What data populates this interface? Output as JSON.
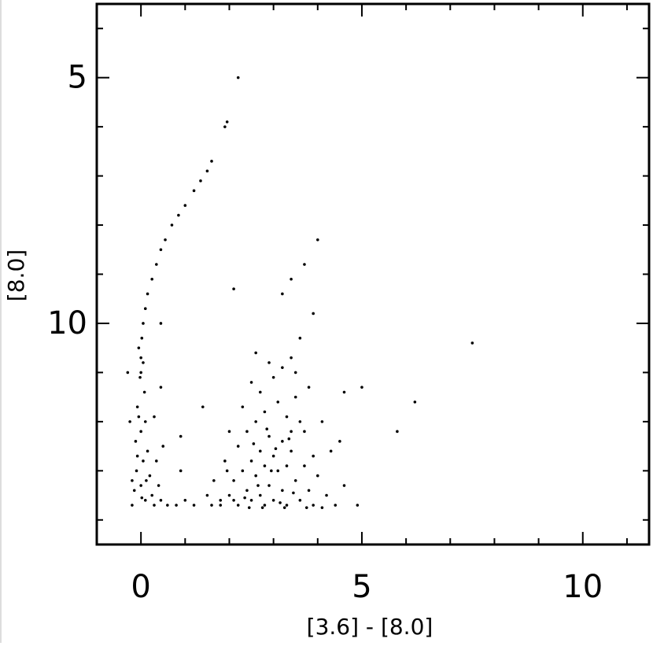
{
  "chart_data": {
    "type": "scatter",
    "x_label": "[3.6] -  [8.0]",
    "y_label": "[8.0]",
    "xlim": [
      -1,
      11.5
    ],
    "ylim": [
      14.5,
      3.5
    ],
    "xticks": [
      0,
      5,
      10
    ],
    "yticks": [
      5,
      10
    ],
    "xminor": [
      -1,
      1,
      2,
      3,
      4,
      6,
      7,
      8,
      9,
      11
    ],
    "yminor": [
      4,
      6,
      7,
      8,
      9,
      11,
      12,
      13,
      14
    ],
    "series": [
      {
        "color": "#000000",
        "x": [
          2.2,
          1.95,
          1.9,
          1.6,
          1.5,
          1.35,
          1.2,
          1.0,
          0.85,
          0.7,
          0.55,
          0.45,
          0.35,
          0.25,
          0.15,
          0.1,
          0.05,
          0.02,
          0.0,
          0.0,
          4.0,
          3.7,
          3.4,
          2.1,
          7.5,
          6.2,
          5.8,
          5.0,
          4.6,
          3.9,
          3.2,
          0.45,
          -0.05,
          0.05,
          -0.02,
          0.08,
          -0.08,
          0.1,
          0.0,
          -0.12,
          0.15,
          0.05,
          -0.1,
          0.2,
          0.0,
          -0.15,
          0.25,
          0.1,
          -0.2,
          0.3,
          0.45,
          0.6,
          -0.25,
          -0.3,
          -0.2,
          0.35,
          0.4,
          0.8,
          1.0,
          1.2,
          0.5,
          -0.05,
          0.02,
          0.12,
          -0.08,
          0.3,
          0.45,
          0.9,
          1.5,
          1.6,
          1.8,
          1.8,
          2.0,
          2.1,
          2.2,
          2.3,
          2.4,
          2.5,
          2.5,
          2.6,
          2.7,
          2.7,
          2.8,
          2.8,
          2.9,
          3.0,
          3.0,
          3.1,
          3.2,
          3.2,
          3.3,
          3.3,
          3.4,
          3.5,
          3.6,
          3.7,
          3.8,
          3.9,
          4.0,
          4.2,
          4.4,
          4.6,
          4.9,
          2.4,
          2.6,
          2.8,
          2.9,
          3.1,
          3.3,
          3.4,
          3.5,
          3.6,
          2.7,
          2.5,
          3.0,
          3.2,
          3.4,
          2.9,
          2.6,
          3.6,
          3.5,
          3.8,
          4.1,
          4.3,
          4.5,
          1.9,
          2.2,
          1.4,
          0.9,
          2.0,
          2.3,
          3.7,
          3.9,
          2.1,
          2.35,
          2.65,
          2.95,
          3.15,
          3.45,
          2.55,
          2.85,
          3.05,
          3.35,
          2.45,
          3.75,
          2.75,
          3.25,
          4.1,
          1.65,
          1.95
        ],
        "values": [
          5.0,
          5.9,
          6.0,
          6.7,
          6.9,
          7.1,
          7.3,
          7.6,
          7.8,
          8.0,
          8.3,
          8.5,
          8.8,
          9.1,
          9.4,
          9.7,
          10.0,
          10.3,
          10.7,
          11.0,
          8.3,
          8.8,
          9.1,
          9.3,
          10.4,
          11.6,
          12.2,
          11.3,
          11.4,
          9.8,
          9.4,
          10.0,
          10.5,
          10.8,
          11.1,
          11.4,
          11.7,
          12.0,
          12.2,
          12.4,
          12.6,
          12.8,
          13.0,
          13.1,
          13.3,
          13.4,
          13.5,
          13.6,
          13.7,
          13.7,
          13.6,
          13.7,
          12.0,
          11.0,
          13.2,
          12.8,
          13.3,
          13.7,
          13.6,
          13.7,
          12.5,
          11.9,
          13.55,
          13.2,
          12.7,
          11.9,
          11.3,
          12.3,
          13.5,
          13.7,
          13.6,
          13.7,
          13.5,
          13.2,
          13.7,
          13.0,
          13.4,
          12.8,
          13.6,
          13.1,
          12.6,
          13.5,
          12.9,
          13.7,
          13.3,
          12.7,
          13.6,
          13.0,
          12.4,
          13.4,
          12.9,
          13.7,
          12.6,
          13.2,
          13.6,
          12.9,
          13.4,
          13.7,
          13.1,
          13.5,
          13.7,
          13.3,
          13.7,
          12.2,
          12.0,
          11.8,
          12.3,
          11.6,
          11.9,
          12.2,
          11.5,
          12.0,
          11.4,
          11.2,
          11.1,
          10.9,
          10.7,
          10.8,
          10.6,
          10.3,
          11.0,
          11.3,
          12.0,
          12.6,
          12.4,
          12.8,
          12.5,
          11.7,
          13.0,
          12.2,
          11.7,
          12.2,
          12.7,
          13.6,
          13.55,
          13.3,
          13.0,
          13.65,
          13.45,
          12.45,
          12.15,
          12.55,
          12.35,
          13.75,
          13.75,
          13.75,
          13.75,
          13.75,
          13.2,
          13.0
        ]
      }
    ]
  }
}
